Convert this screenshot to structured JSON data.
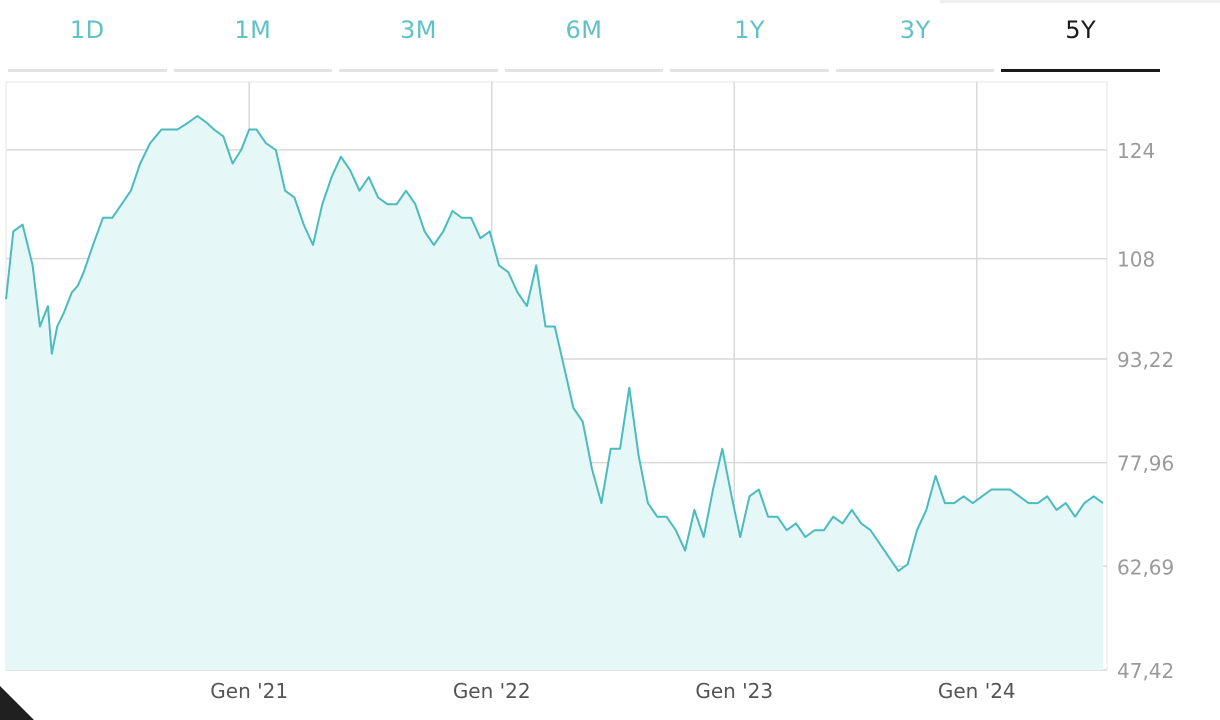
{
  "tabs": [
    {
      "label": "1D",
      "active": false
    },
    {
      "label": "1M",
      "active": false
    },
    {
      "label": "3M",
      "active": false
    },
    {
      "label": "6M",
      "active": false
    },
    {
      "label": "1Y",
      "active": false
    },
    {
      "label": "3Y",
      "active": false
    },
    {
      "label": "5Y",
      "active": true
    }
  ],
  "colors": {
    "line": "#4bbbbd",
    "fill": "#e6f7f7",
    "grid": "#d9d9d9",
    "tick_text": "#9a9a9a",
    "tab_inactive": "#5fc2c5",
    "tab_active": "#1a1a1a"
  },
  "chart_data": {
    "type": "area",
    "title": "",
    "xlabel": "",
    "ylabel": "",
    "ylim": [
      47.42,
      134
    ],
    "yticks": [
      124,
      108,
      93.22,
      77.96,
      62.69,
      47.42
    ],
    "ytick_labels": [
      "124",
      "108",
      "93,22",
      "77,96",
      "62,69",
      "47,42"
    ],
    "xlim": [
      "2020-01-01",
      "2024-07-15"
    ],
    "xticks": [
      "2021-01-01",
      "2022-01-01",
      "2023-01-01",
      "2024-01-01"
    ],
    "xtick_labels": [
      "Gen '21",
      "Gen '22",
      "Gen '23",
      "Gen '24"
    ],
    "grid": true,
    "x": [
      "2020-01-01",
      "2020-01-12",
      "2020-01-26",
      "2020-02-10",
      "2020-02-21",
      "2020-03-04",
      "2020-03-10",
      "2020-03-18",
      "2020-03-28",
      "2020-04-09",
      "2020-04-18",
      "2020-04-27",
      "2020-05-11",
      "2020-05-26",
      "2020-06-09",
      "2020-06-23",
      "2020-07-07",
      "2020-07-21",
      "2020-08-05",
      "2020-08-22",
      "2020-09-04",
      "2020-09-15",
      "2020-10-01",
      "2020-10-15",
      "2020-10-29",
      "2020-11-09",
      "2020-11-23",
      "2020-12-07",
      "2020-12-20",
      "2021-01-01",
      "2021-01-12",
      "2021-01-26",
      "2021-02-10",
      "2021-02-24",
      "2021-03-10",
      "2021-03-24",
      "2021-04-07",
      "2021-04-21",
      "2021-05-05",
      "2021-05-19",
      "2021-06-02",
      "2021-06-16",
      "2021-06-30",
      "2021-07-14",
      "2021-07-28",
      "2021-08-11",
      "2021-08-25",
      "2021-09-08",
      "2021-09-22",
      "2021-10-06",
      "2021-10-20",
      "2021-11-03",
      "2021-11-17",
      "2021-12-01",
      "2021-12-15",
      "2021-12-29",
      "2022-01-12",
      "2022-01-26",
      "2022-02-09",
      "2022-02-23",
      "2022-03-09",
      "2022-03-23",
      "2022-04-06",
      "2022-04-20",
      "2022-05-04",
      "2022-05-18",
      "2022-06-01",
      "2022-06-15",
      "2022-06-29",
      "2022-07-13",
      "2022-07-27",
      "2022-08-10",
      "2022-08-24",
      "2022-09-07",
      "2022-09-21",
      "2022-10-05",
      "2022-10-19",
      "2022-11-02",
      "2022-11-16",
      "2022-11-30",
      "2022-12-14",
      "2022-12-28",
      "2023-01-10",
      "2023-01-24",
      "2023-02-07",
      "2023-02-21",
      "2023-03-07",
      "2023-03-21",
      "2023-04-04",
      "2023-04-18",
      "2023-05-02",
      "2023-05-16",
      "2023-05-30",
      "2023-06-13",
      "2023-06-27",
      "2023-07-11",
      "2023-07-25",
      "2023-08-08",
      "2023-08-22",
      "2023-09-05",
      "2023-09-19",
      "2023-10-03",
      "2023-10-17",
      "2023-10-31",
      "2023-11-14",
      "2023-11-28",
      "2023-12-12",
      "2023-12-26",
      "2024-01-09",
      "2024-01-23",
      "2024-02-06",
      "2024-02-20",
      "2024-03-05",
      "2024-03-19",
      "2024-04-02",
      "2024-04-16",
      "2024-04-30",
      "2024-05-14",
      "2024-05-28",
      "2024-06-11",
      "2024-06-25",
      "2024-07-09"
    ],
    "values": [
      102,
      112,
      113,
      107,
      98,
      101,
      94,
      98,
      100,
      103,
      104,
      106,
      110,
      114,
      114,
      116,
      118,
      122,
      125,
      127,
      127,
      127,
      128,
      129,
      128,
      127,
      126,
      122,
      124,
      127,
      127,
      125,
      124,
      118,
      117,
      113,
      110,
      116,
      120,
      123,
      121,
      118,
      120,
      117,
      116,
      116,
      118,
      116,
      112,
      110,
      112,
      115,
      114,
      114,
      111,
      112,
      107,
      106,
      103,
      101,
      107,
      98,
      98,
      92,
      86,
      84,
      77,
      72,
      80,
      80,
      89,
      79,
      72,
      70,
      70,
      68,
      65,
      71,
      67,
      74,
      80,
      73,
      67,
      73,
      74,
      70,
      70,
      68,
      69,
      67,
      68,
      68,
      70,
      69,
      71,
      69,
      68,
      66,
      64,
      62,
      63,
      68,
      71,
      76,
      72,
      72,
      73,
      72,
      73,
      74,
      74,
      74,
      73,
      72,
      72,
      73,
      71,
      72,
      70,
      72,
      73,
      72
    ]
  }
}
